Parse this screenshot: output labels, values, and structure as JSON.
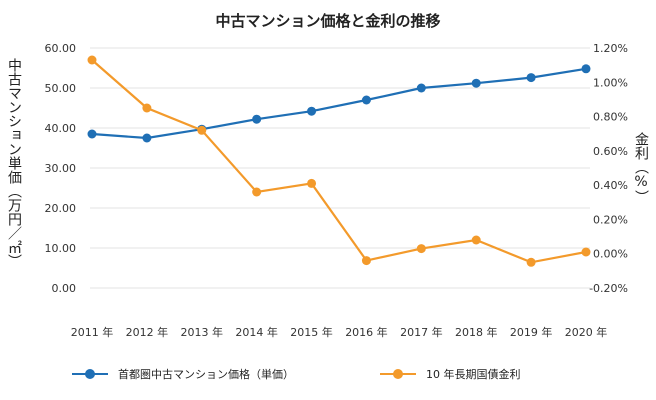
{
  "chart_data": {
    "type": "line",
    "title": "中古マンション価格と金利の推移",
    "ylabel": "中古マンション単価（万円／㎡）",
    "y2label": "金利（%）",
    "categories": [
      "2011 年",
      "2012 年",
      "2013 年",
      "2014 年",
      "2015 年",
      "2016 年",
      "2017 年",
      "2018 年",
      "2019 年",
      "2020 年"
    ],
    "ylim": [
      0,
      60
    ],
    "y2lim": [
      -0.2,
      1.2
    ],
    "yticks": [
      "0.00",
      "10.00",
      "20.00",
      "30.00",
      "40.00",
      "50.00",
      "60.00"
    ],
    "y2ticks": [
      "-0.20%",
      "0.00%",
      "0.20%",
      "0.40%",
      "0.60%",
      "0.80%",
      "1.00%",
      "1.20%"
    ],
    "series": [
      {
        "name": "首都圏中古マンション価格（単価）",
        "axis": "left",
        "color": "#1f6fb5",
        "values": [
          38.5,
          37.5,
          39.7,
          42.2,
          44.2,
          47.0,
          50.0,
          51.2,
          52.6,
          54.8
        ]
      },
      {
        "name": "10 年長期国債金利",
        "axis": "right",
        "color": "#f39a2b",
        "values": [
          1.13,
          0.85,
          0.72,
          0.36,
          0.41,
          -0.04,
          0.03,
          0.08,
          -0.05,
          0.01
        ]
      }
    ]
  }
}
